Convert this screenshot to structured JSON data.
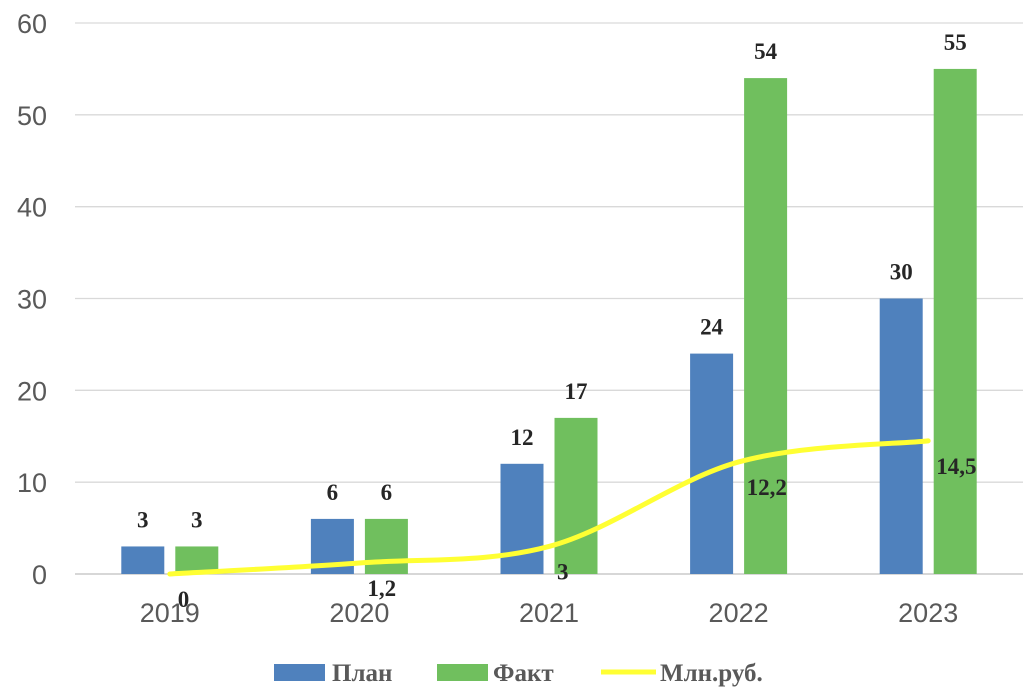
{
  "chart_data": {
    "type": "bar",
    "title": "",
    "xlabel": "",
    "ylabel": "",
    "categories": [
      "2019",
      "2020",
      "2021",
      "2022",
      "2023"
    ],
    "ylim": [
      0,
      60
    ],
    "yticks": [
      "0",
      "10",
      "20",
      "30",
      "40",
      "50",
      "60"
    ],
    "grid": true,
    "legend_position": "bottom",
    "series": [
      {
        "name": "План",
        "kind": "bar",
        "color": "#4f81bd",
        "values": [
          3,
          6,
          12,
          24,
          30
        ],
        "labels": [
          "3",
          "6",
          "12",
          "24",
          "30"
        ]
      },
      {
        "name": "Факт",
        "kind": "bar",
        "color": "#70bf5e",
        "values": [
          3,
          6,
          17,
          54,
          55
        ],
        "labels": [
          "3",
          "6",
          "17",
          "54",
          "55"
        ]
      },
      {
        "name": "Млн.руб.",
        "kind": "line",
        "color": "#ffff33",
        "values": [
          0,
          1.2,
          3,
          12.2,
          14.5
        ],
        "labels": [
          "0",
          "1,2",
          "3",
          "12,2",
          "14,5"
        ]
      }
    ]
  }
}
